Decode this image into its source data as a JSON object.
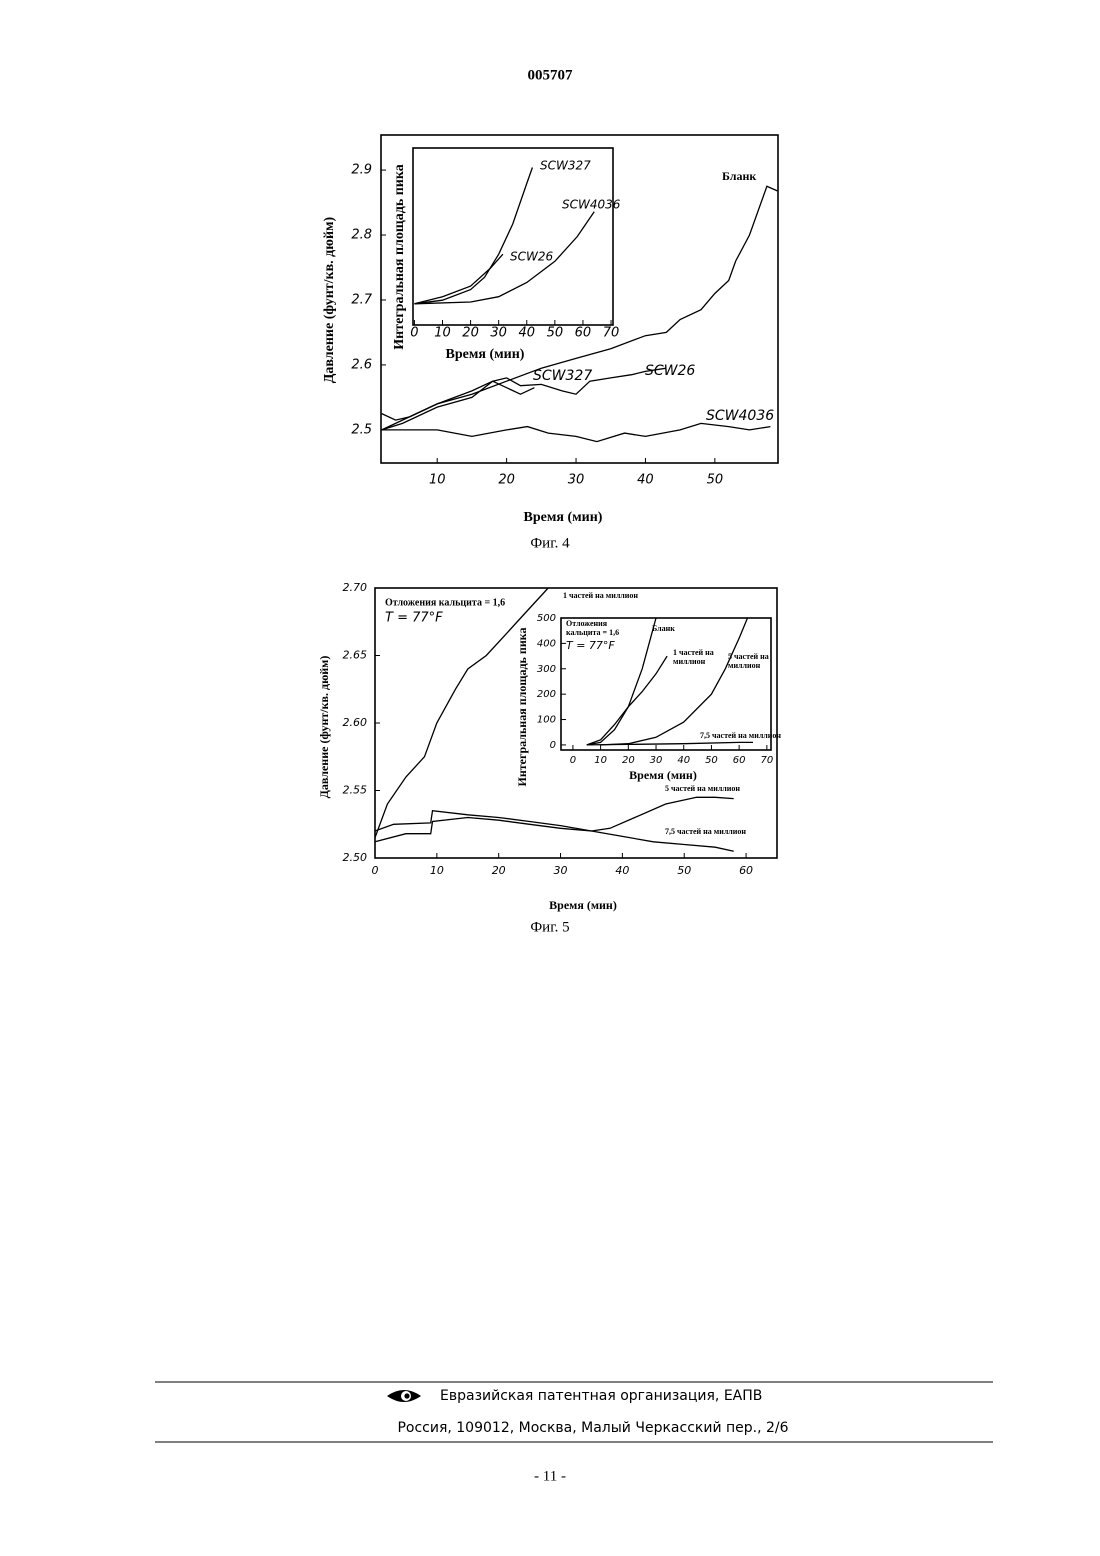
{
  "header": {
    "number": "005707"
  },
  "chart_data": [
    {
      "type": "line",
      "caption": "Фиг. 4",
      "xlabel": "Время (мин)",
      "ylabel": "Давление (фунт/кв. дюйм)",
      "xlim": [
        1.9,
        59.1
      ],
      "ylim": [
        2.449,
        2.954
      ],
      "xticks": [
        10,
        20,
        30,
        40,
        50
      ],
      "yticks": [
        2.5,
        2.6,
        2.7,
        2.8,
        2.9
      ],
      "series": [
        {
          "name": "Бланк",
          "color": "#000000",
          "x": [
            2,
            5,
            10,
            15,
            20,
            25,
            30,
            35,
            40,
            43,
            45,
            48,
            50,
            52,
            53,
            55,
            57.5,
            59
          ],
          "values": [
            2.5,
            2.515,
            2.54,
            2.555,
            2.575,
            2.595,
            2.61,
            2.625,
            2.645,
            2.65,
            2.67,
            2.685,
            2.71,
            2.73,
            2.76,
            2.8,
            2.875,
            2.868
          ]
        },
        {
          "name": "SCW327",
          "color": "#000000",
          "x": [
            2,
            4,
            6,
            10,
            15,
            18,
            20,
            22,
            24
          ],
          "values": [
            2.525,
            2.515,
            2.52,
            2.54,
            2.56,
            2.575,
            2.565,
            2.555,
            2.565
          ]
        },
        {
          "name": "SCW26",
          "color": "#000000",
          "x": [
            2,
            5,
            10,
            15,
            18,
            20,
            22,
            25,
            28,
            30,
            32,
            35,
            38,
            40,
            43
          ],
          "values": [
            2.5,
            2.51,
            2.535,
            2.55,
            2.575,
            2.58,
            2.568,
            2.57,
            2.56,
            2.555,
            2.575,
            2.58,
            2.585,
            2.59,
            2.595
          ]
        },
        {
          "name": "SCW4036",
          "color": "#000000",
          "x": [
            2,
            10,
            15,
            20,
            23,
            26,
            30,
            33,
            37,
            40,
            45,
            48,
            52,
            55,
            58
          ],
          "values": [
            2.5,
            2.5,
            2.49,
            2.5,
            2.505,
            2.495,
            2.49,
            2.482,
            2.495,
            2.49,
            2.5,
            2.51,
            2.505,
            2.5,
            2.505
          ]
        }
      ],
      "annotations": [
        {
          "text": [
            "Бланк"
          ]
        },
        {
          "text": [
            "SCW327"
          ]
        },
        {
          "text": [
            "SCW26"
          ]
        },
        {
          "text": [
            "SCW4036"
          ]
        }
      ]
    },
    {
      "type": "line",
      "xlabel": "Время (мин)",
      "ylabel": "Интегральная площадь пика",
      "xlim": [
        -0.5,
        70.7
      ],
      "ylim": [
        0,
        1
      ],
      "xticks": [
        0,
        10,
        20,
        30,
        40,
        50,
        60,
        70
      ],
      "series": [
        {
          "name": "SCW327",
          "color": "#000000",
          "x": [
            0,
            10,
            20,
            25,
            30,
            35,
            40,
            42
          ],
          "values": [
            0.12,
            0.14,
            0.2,
            0.27,
            0.4,
            0.57,
            0.8,
            0.89
          ]
        },
        {
          "name": "SCW4036",
          "color": "#000000",
          "x": [
            0,
            20,
            30,
            40,
            50,
            58,
            64
          ],
          "values": [
            0.12,
            0.13,
            0.16,
            0.24,
            0.36,
            0.5,
            0.64
          ]
        },
        {
          "name": "SCW26",
          "color": "#000000",
          "x": [
            0,
            10,
            20,
            27,
            31.5
          ],
          "values": [
            0.12,
            0.16,
            0.22,
            0.32,
            0.4
          ]
        }
      ],
      "annotations": [
        {
          "text": [
            "SCW327"
          ]
        },
        {
          "text": [
            "SCW4036"
          ]
        },
        {
          "text": [
            "SCW26"
          ]
        }
      ]
    },
    {
      "type": "line",
      "caption": "Фиг. 5",
      "xlabel": "Время (мин)",
      "ylabel": "Давление (фунт/кв. дюйм)",
      "xlim": [
        0,
        65
      ],
      "ylim": [
        2.5,
        2.7
      ],
      "xticks": [
        0,
        10,
        20,
        30,
        40,
        50,
        60
      ],
      "yticks": [
        {
          "value": 2.5,
          "label": "2.50"
        },
        {
          "value": 2.55,
          "label": "2.55"
        },
        {
          "value": 2.6,
          "label": "2.60"
        },
        {
          "value": 2.65,
          "label": "2.65"
        },
        {
          "value": 2.7,
          "label": "2.70"
        }
      ],
      "series": [
        {
          "name": "1 частей на миллион",
          "color": "#000000",
          "x": [
            0,
            2,
            5,
            8,
            10,
            13,
            15,
            18,
            21,
            24,
            26,
            28
          ],
          "values": [
            2.515,
            2.54,
            2.56,
            2.575,
            2.6,
            2.625,
            2.64,
            2.65,
            2.665,
            2.68,
            2.69,
            2.7
          ]
        },
        {
          "name": "5 частей на миллион",
          "color": "#000000",
          "x": [
            0,
            3,
            9,
            9.3,
            15,
            20,
            25,
            30,
            35,
            38,
            42,
            47,
            52,
            55,
            58
          ],
          "values": [
            2.52,
            2.525,
            2.526,
            2.535,
            2.532,
            2.53,
            2.527,
            2.524,
            2.52,
            2.522,
            2.53,
            2.54,
            2.545,
            2.545,
            2.544
          ]
        },
        {
          "name": "7,5 частей на миллион",
          "color": "#000000",
          "x": [
            0,
            5,
            9,
            9.3,
            15,
            20,
            25,
            30,
            35,
            40,
            45,
            50,
            55,
            58
          ],
          "values": [
            2.512,
            2.518,
            2.518,
            2.527,
            2.53,
            2.528,
            2.525,
            2.522,
            2.52,
            2.516,
            2.512,
            2.51,
            2.508,
            2.505
          ]
        }
      ],
      "annotations": [
        {
          "text": [
            "Отложения кальцита = 1,6"
          ]
        },
        {
          "text": [
            "T = 77°F"
          ]
        },
        {
          "text": [
            "1 частей на миллион"
          ]
        },
        {
          "text": [
            "5 частей на миллион"
          ]
        },
        {
          "text": [
            "7,5 частей на миллион"
          ]
        }
      ]
    },
    {
      "type": "line",
      "xlabel": "Время (мин)",
      "ylabel": "Интегральная площадь пика",
      "xlim": [
        -4.3,
        71.5
      ],
      "ylim": [
        -20,
        500
      ],
      "xticks": [
        0,
        10,
        20,
        30,
        40,
        50,
        60,
        70
      ],
      "yticks": [
        0,
        100,
        200,
        300,
        400,
        500
      ],
      "series": [
        {
          "name": "Бланк",
          "color": "#000000",
          "x": [
            5,
            10,
            15,
            20,
            25,
            28,
            30
          ],
          "values": [
            0,
            10,
            60,
            150,
            300,
            420,
            500
          ]
        },
        {
          "name": "1 частей на миллион",
          "color": "#000000",
          "x": [
            5,
            10,
            15,
            20,
            25,
            30,
            34
          ],
          "values": [
            0,
            20,
            80,
            150,
            210,
            280,
            350
          ]
        },
        {
          "name": "5 частей на миллион",
          "color": "#000000",
          "x": [
            10,
            20,
            30,
            40,
            50,
            55,
            60,
            63
          ],
          "values": [
            0,
            5,
            30,
            90,
            200,
            300,
            420,
            500
          ]
        },
        {
          "name": "7,5 частей на миллион",
          "color": "#000000",
          "x": [
            5,
            20,
            40,
            60,
            65
          ],
          "values": [
            0,
            2,
            5,
            10,
            10
          ]
        }
      ],
      "annotations": [
        {
          "text": [
            "Отложения",
            "кальцита = 1,6"
          ]
        },
        {
          "text": [
            "T = 77°F"
          ]
        },
        {
          "text": [
            "Бланк"
          ]
        },
        {
          "text": [
            "1 частей на",
            "миллион"
          ]
        },
        {
          "text": [
            "5 частей на",
            "миллион"
          ]
        },
        {
          "text": [
            "7,5 частей на миллион"
          ]
        }
      ]
    }
  ],
  "footer": {
    "organization": "Евразийская патентная организация, ЕАПВ",
    "address": "Россия, 109012, Москва, Малый Черкасский пер., 2/6",
    "page": "- 11 -"
  }
}
